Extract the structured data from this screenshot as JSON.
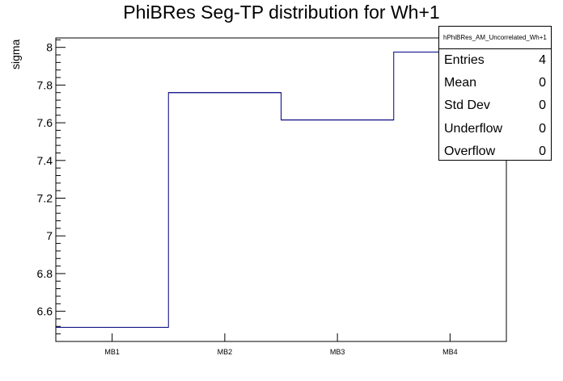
{
  "chart_data": {
    "type": "step",
    "title": "PhiBRes Seg-TP distribution for Wh+1",
    "xlabel": "",
    "ylabel": "sigma",
    "categories": [
      "MB1",
      "MB2",
      "MB3",
      "MB4"
    ],
    "values": [
      6.515,
      7.76,
      7.615,
      7.975
    ],
    "ylim": [
      6.44,
      8.05
    ],
    "yticks": [
      "6.6",
      "6.8",
      "7",
      "7.2",
      "7.4",
      "7.6",
      "7.8",
      "8"
    ],
    "ytick_values": [
      6.6,
      6.8,
      7.0,
      7.2,
      7.4,
      7.6,
      7.8,
      8.0
    ],
    "line_color": "#000080",
    "grid": false
  },
  "stats_box": {
    "name": "hPhiBRes_AM_Uncorrelated_Wh+1",
    "rows": [
      {
        "label": "Entries",
        "value": "4"
      },
      {
        "label": "Mean",
        "value": "0"
      },
      {
        "label": "Std Dev",
        "value": "0"
      },
      {
        "label": "Underflow",
        "value": "0"
      },
      {
        "label": "Overflow",
        "value": "0"
      }
    ]
  }
}
